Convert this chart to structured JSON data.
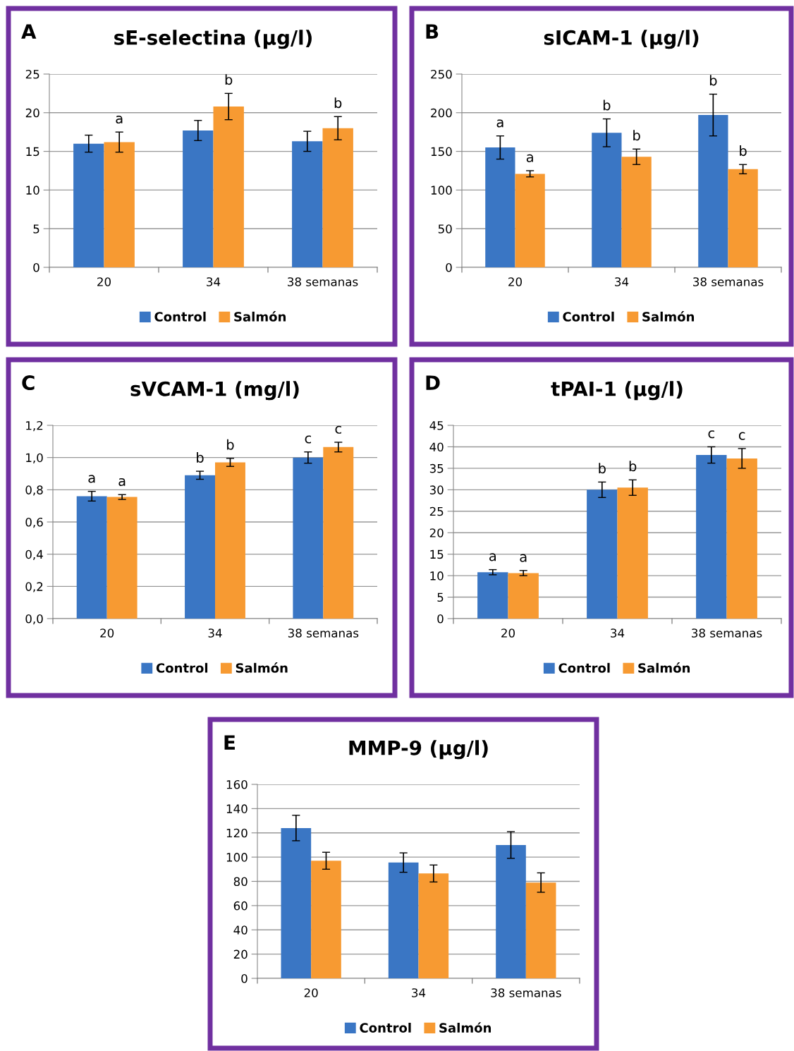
{
  "chart_data": [
    {
      "type": "bar",
      "title": "sE-selectina (µg/l)",
      "categories": [
        "20",
        "34",
        "38 semanas"
      ],
      "ylim": [
        0,
        25
      ],
      "yticks": [
        0,
        5,
        10,
        15,
        20,
        25
      ],
      "grid": "y",
      "legend": "bottom",
      "series": [
        {
          "name": "Control",
          "color": "#3a76c4",
          "values": [
            16.0,
            17.7,
            16.3
          ],
          "errors": [
            1.1,
            1.3,
            1.3
          ]
        },
        {
          "name": "Salmón",
          "color": "#f79a32",
          "values": [
            16.2,
            20.8,
            18.0
          ],
          "errors": [
            1.3,
            1.7,
            1.5
          ],
          "value_labels": [
            "a",
            "b",
            "b"
          ]
        }
      ],
      "annotations": [
        "A"
      ]
    },
    {
      "type": "bar",
      "title": "sICAM-1 (µg/l)",
      "categories": [
        "20",
        "34",
        "38 semanas"
      ],
      "ylim": [
        0,
        250
      ],
      "yticks": [
        0,
        50,
        100,
        150,
        200,
        250
      ],
      "grid": "y",
      "legend": "bottom",
      "series": [
        {
          "name": "Control",
          "color": "#3a76c4",
          "values": [
            155,
            174,
            197
          ],
          "errors": [
            15,
            18,
            27
          ],
          "value_labels": [
            "a",
            "b",
            "b"
          ]
        },
        {
          "name": "Salmón",
          "color": "#f79a32",
          "values": [
            121,
            143,
            127
          ],
          "errors": [
            4,
            10,
            6
          ],
          "value_labels": [
            "a",
            "b",
            "b"
          ]
        }
      ],
      "annotations": [
        "B"
      ]
    },
    {
      "type": "bar",
      "title": "sVCAM-1 (mg/l)",
      "categories": [
        "20",
        "34",
        "38 semanas"
      ],
      "ylim": [
        0,
        1.2
      ],
      "yticks": [
        {
          "value": 0,
          "label": "0,0"
        },
        {
          "value": 0.2,
          "label": "0,2"
        },
        {
          "value": 0.4,
          "label": "0,4"
        },
        {
          "value": 0.6,
          "label": "0,6"
        },
        {
          "value": 0.8,
          "label": "0,8"
        },
        {
          "value": 1.0,
          "label": "1,0"
        },
        {
          "value": 1.2,
          "label": "1,2"
        }
      ],
      "grid": "y",
      "legend": "bottom",
      "series": [
        {
          "name": "Control",
          "color": "#3a76c4",
          "values": [
            0.76,
            0.89,
            1.0
          ],
          "errors": [
            0.03,
            0.025,
            0.035
          ],
          "value_labels": [
            "a",
            "b",
            "c"
          ]
        },
        {
          "name": "Salmón",
          "color": "#f79a32",
          "values": [
            0.755,
            0.97,
            1.065
          ],
          "errors": [
            0.015,
            0.025,
            0.03
          ],
          "value_labels": [
            "a",
            "b",
            "c"
          ]
        }
      ],
      "annotations": [
        "C"
      ]
    },
    {
      "type": "bar",
      "title": "tPAI-1 (µg/l)",
      "categories": [
        "20",
        "34",
        "38 semanas"
      ],
      "ylim": [
        0,
        45
      ],
      "yticks": [
        0,
        5,
        10,
        15,
        20,
        25,
        30,
        35,
        40,
        45
      ],
      "grid": "y",
      "legend": "bottom",
      "series": [
        {
          "name": "Control",
          "color": "#3a76c4",
          "values": [
            10.8,
            30.0,
            38.1
          ],
          "errors": [
            0.6,
            1.8,
            1.9
          ],
          "value_labels": [
            "a",
            "b",
            "c"
          ]
        },
        {
          "name": "Salmón",
          "color": "#f79a32",
          "values": [
            10.6,
            30.5,
            37.3
          ],
          "errors": [
            0.6,
            1.8,
            2.3
          ],
          "value_labels": [
            "a",
            "b",
            "c"
          ]
        }
      ],
      "annotations": [
        "D"
      ]
    },
    {
      "type": "bar",
      "title": "MMP-9 (µg/l)",
      "categories": [
        "20",
        "34",
        "38 semanas"
      ],
      "ylim": [
        0,
        160
      ],
      "yticks": [
        0,
        20,
        40,
        60,
        80,
        100,
        120,
        140,
        160
      ],
      "grid": "y",
      "legend": "bottom",
      "series": [
        {
          "name": "Control",
          "color": "#3a76c4",
          "values": [
            124,
            95.5,
            110
          ],
          "errors": [
            10.5,
            8,
            11
          ]
        },
        {
          "name": "Salmón",
          "color": "#f79a32",
          "values": [
            97,
            86.5,
            79
          ],
          "errors": [
            7,
            7,
            8
          ]
        }
      ],
      "annotations": [
        "E"
      ]
    }
  ]
}
